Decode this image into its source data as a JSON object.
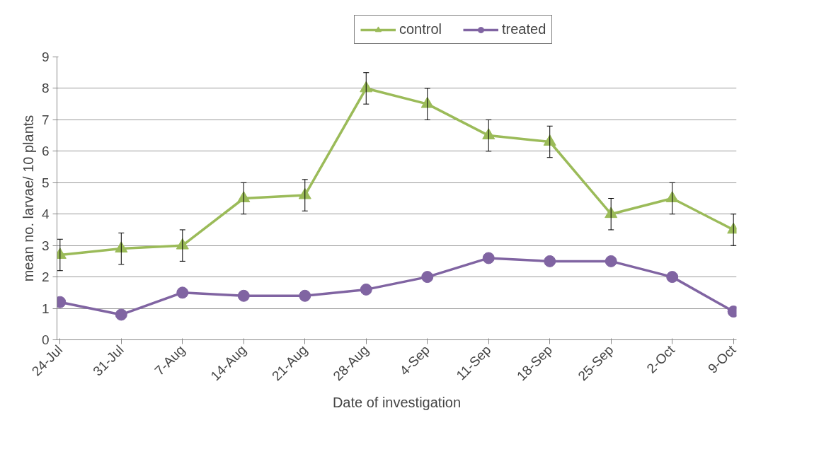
{
  "chart_data": {
    "type": "line",
    "xlabel": "Date of investigation",
    "ylabel": "mean no. larvae/ 10 plants",
    "categories": [
      "24-Jul",
      "31-Jul",
      "7-Aug",
      "14-Aug",
      "21-Aug",
      "28-Aug",
      "4-Sep",
      "11-Sep",
      "18-Sep",
      "25-Sep",
      "2-Oct",
      "9-Oct"
    ],
    "series": [
      {
        "name": "control",
        "color": "#9bbb59",
        "marker": "triangle",
        "values": [
          2.7,
          2.9,
          3.0,
          4.5,
          4.6,
          8.0,
          7.5,
          6.5,
          6.3,
          4.0,
          4.5,
          3.5
        ],
        "errors": [
          0.5,
          0.5,
          0.5,
          0.5,
          0.5,
          0.5,
          0.5,
          0.5,
          0.5,
          0.5,
          0.5,
          0.5
        ]
      },
      {
        "name": "treated",
        "color": "#8064a2",
        "marker": "circle",
        "values": [
          1.2,
          0.8,
          1.5,
          1.4,
          1.4,
          1.6,
          2.0,
          2.6,
          2.5,
          2.5,
          2.0,
          0.9
        ]
      }
    ],
    "ylim": [
      0,
      9
    ],
    "yticks": [
      0,
      1,
      2,
      3,
      4,
      5,
      6,
      7,
      8,
      9
    ],
    "grid": "y",
    "legend": "top",
    "line_style": "solid"
  }
}
